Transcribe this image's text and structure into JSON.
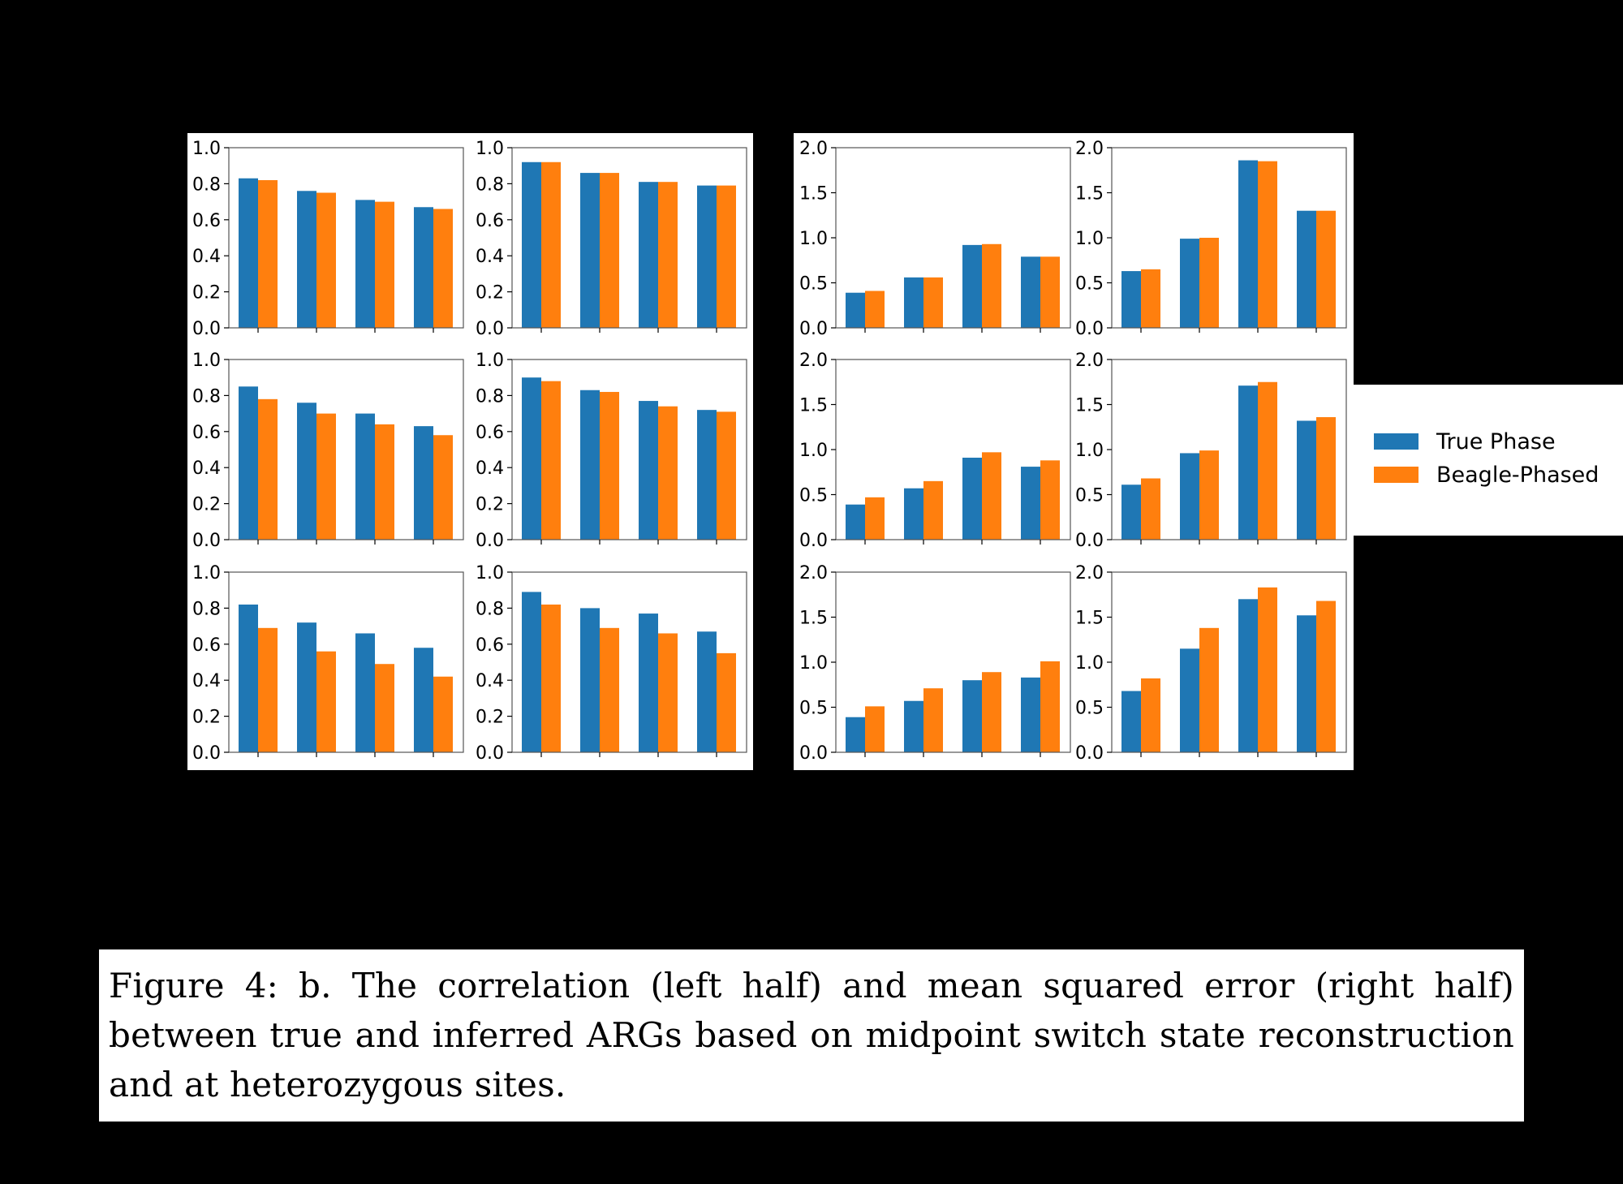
{
  "legend": {
    "entries": [
      {
        "label": "True Phase",
        "color": "#1f77b4"
      },
      {
        "label": "Beagle-Phased",
        "color": "#ff7f0e"
      }
    ]
  },
  "caption": "Figure 4: b. The correlation (left half) and mean squared error (right half) between true and inferred ARGs based on midpoint switch state reconstruction and at heterozygous sites.",
  "chart_data": [
    {
      "type": "bar",
      "series": [
        {
          "name": "True Phase",
          "values": [
            0.83,
            0.76,
            0.71,
            0.67
          ]
        },
        {
          "name": "Beagle-Phased",
          "values": [
            0.82,
            0.75,
            0.7,
            0.66
          ]
        }
      ],
      "ylim": [
        0,
        1.0
      ],
      "yticks": [
        "0.0",
        "0.2",
        "0.4",
        "0.6",
        "0.8",
        "1.0"
      ]
    },
    {
      "type": "bar",
      "series": [
        {
          "name": "True Phase",
          "values": [
            0.92,
            0.86,
            0.81,
            0.79
          ]
        },
        {
          "name": "Beagle-Phased",
          "values": [
            0.92,
            0.86,
            0.81,
            0.79
          ]
        }
      ],
      "ylim": [
        0,
        1.0
      ],
      "yticks": [
        "0.0",
        "0.2",
        "0.4",
        "0.6",
        "0.8",
        "1.0"
      ]
    },
    {
      "type": "bar",
      "series": [
        {
          "name": "True Phase",
          "values": [
            0.39,
            0.56,
            0.92,
            0.79
          ]
        },
        {
          "name": "Beagle-Phased",
          "values": [
            0.41,
            0.56,
            0.93,
            0.79
          ]
        }
      ],
      "ylim": [
        0,
        2.0
      ],
      "yticks": [
        "0.0",
        "0.5",
        "1.0",
        "1.5",
        "2.0"
      ]
    },
    {
      "type": "bar",
      "series": [
        {
          "name": "True Phase",
          "values": [
            0.63,
            0.99,
            1.86,
            1.3
          ]
        },
        {
          "name": "Beagle-Phased",
          "values": [
            0.65,
            1.0,
            1.85,
            1.3
          ]
        }
      ],
      "ylim": [
        0,
        2.0
      ],
      "yticks": [
        "0.0",
        "0.5",
        "1.0",
        "1.5",
        "2.0"
      ]
    },
    {
      "type": "bar",
      "series": [
        {
          "name": "True Phase",
          "values": [
            0.85,
            0.76,
            0.7,
            0.63
          ]
        },
        {
          "name": "Beagle-Phased",
          "values": [
            0.78,
            0.7,
            0.64,
            0.58
          ]
        }
      ],
      "ylim": [
        0,
        1.0
      ],
      "yticks": [
        "0.0",
        "0.2",
        "0.4",
        "0.6",
        "0.8",
        "1.0"
      ]
    },
    {
      "type": "bar",
      "series": [
        {
          "name": "True Phase",
          "values": [
            0.9,
            0.83,
            0.77,
            0.72
          ]
        },
        {
          "name": "Beagle-Phased",
          "values": [
            0.88,
            0.82,
            0.74,
            0.71
          ]
        }
      ],
      "ylim": [
        0,
        1.0
      ],
      "yticks": [
        "0.0",
        "0.2",
        "0.4",
        "0.6",
        "0.8",
        "1.0"
      ]
    },
    {
      "type": "bar",
      "series": [
        {
          "name": "True Phase",
          "values": [
            0.39,
            0.57,
            0.91,
            0.81
          ]
        },
        {
          "name": "Beagle-Phased",
          "values": [
            0.47,
            0.65,
            0.97,
            0.88
          ]
        }
      ],
      "ylim": [
        0,
        2.0
      ],
      "yticks": [
        "0.0",
        "0.5",
        "1.0",
        "1.5",
        "2.0"
      ]
    },
    {
      "type": "bar",
      "series": [
        {
          "name": "True Phase",
          "values": [
            0.61,
            0.96,
            1.71,
            1.32
          ]
        },
        {
          "name": "Beagle-Phased",
          "values": [
            0.68,
            0.99,
            1.75,
            1.36
          ]
        }
      ],
      "ylim": [
        0,
        2.0
      ],
      "yticks": [
        "0.0",
        "0.5",
        "1.0",
        "1.5",
        "2.0"
      ]
    },
    {
      "type": "bar",
      "series": [
        {
          "name": "True Phase",
          "values": [
            0.82,
            0.72,
            0.66,
            0.58
          ]
        },
        {
          "name": "Beagle-Phased",
          "values": [
            0.69,
            0.56,
            0.49,
            0.42
          ]
        }
      ],
      "ylim": [
        0,
        1.0
      ],
      "yticks": [
        "0.0",
        "0.2",
        "0.4",
        "0.6",
        "0.8",
        "1.0"
      ]
    },
    {
      "type": "bar",
      "series": [
        {
          "name": "True Phase",
          "values": [
            0.89,
            0.8,
            0.77,
            0.67
          ]
        },
        {
          "name": "Beagle-Phased",
          "values": [
            0.82,
            0.69,
            0.66,
            0.55
          ]
        }
      ],
      "ylim": [
        0,
        1.0
      ],
      "yticks": [
        "0.0",
        "0.2",
        "0.4",
        "0.6",
        "0.8",
        "1.0"
      ]
    },
    {
      "type": "bar",
      "series": [
        {
          "name": "True Phase",
          "values": [
            0.39,
            0.57,
            0.8,
            0.83
          ]
        },
        {
          "name": "Beagle-Phased",
          "values": [
            0.51,
            0.71,
            0.89,
            1.01
          ]
        }
      ],
      "ylim": [
        0,
        2.0
      ],
      "yticks": [
        "0.0",
        "0.5",
        "1.0",
        "1.5",
        "2.0"
      ]
    },
    {
      "type": "bar",
      "series": [
        {
          "name": "True Phase",
          "values": [
            0.68,
            1.15,
            1.7,
            1.52
          ]
        },
        {
          "name": "Beagle-Phased",
          "values": [
            0.82,
            1.38,
            1.83,
            1.68
          ]
        }
      ],
      "ylim": [
        0,
        2.0
      ],
      "yticks": [
        "0.0",
        "0.5",
        "1.0",
        "1.5",
        "2.0"
      ]
    }
  ]
}
